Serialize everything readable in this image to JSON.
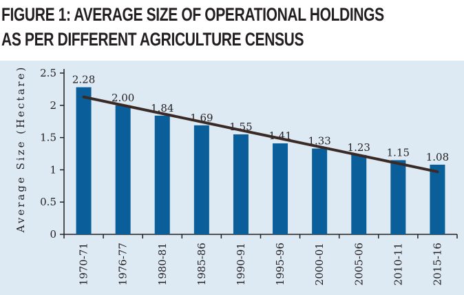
{
  "chart_data": {
    "type": "bar",
    "title_line_1": "FIGURE 1: AVERAGE SIZE OF OPERATIONAL HOLDINGS",
    "title_line_2": "AS PER DIFFERENT AGRICULTURE CENSUS",
    "ylabel": "Average Size (Hectare)",
    "xlabel": "",
    "categories": [
      "1970-71",
      "1976-77",
      "1980-81",
      "1985-86",
      "1990-91",
      "1995-96",
      "2000-01",
      "2005-06",
      "2010-11",
      "2015-16"
    ],
    "values": [
      2.28,
      2.0,
      1.84,
      1.69,
      1.55,
      1.41,
      1.33,
      1.23,
      1.15,
      1.08
    ],
    "data_labels": [
      "2.28",
      "2.00",
      "1.84",
      "1.69",
      "1.55",
      "1.41",
      "1.33",
      "1.23",
      "1.15",
      "1.08"
    ],
    "ylim": [
      0,
      2.5
    ],
    "yticks": [
      0,
      0.5,
      1,
      1.5,
      2,
      2.5
    ],
    "ytick_labels": [
      "0",
      "0.5",
      "1",
      "1.5",
      "2",
      "2.5"
    ],
    "trendline": {
      "type": "linear",
      "start": 2.13,
      "end": 0.97
    },
    "grid": false,
    "colors": {
      "bar": "#0a5f9b",
      "trendline": "#3a2a26",
      "panel": "#dde9f3",
      "axis": "#231f20"
    }
  }
}
